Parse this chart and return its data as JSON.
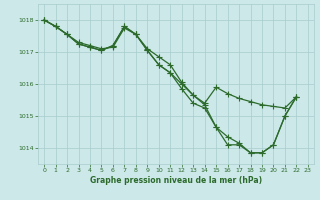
{
  "lines": [
    {
      "x": [
        0,
        1,
        2,
        3,
        4,
        5,
        6,
        7,
        8,
        9,
        10,
        11,
        12,
        13,
        14,
        15,
        16,
        17,
        18,
        19,
        20,
        21,
        22
      ],
      "y": [
        1018.0,
        1017.8,
        1017.55,
        1017.3,
        1017.2,
        1017.1,
        1017.15,
        1017.75,
        1017.55,
        1017.1,
        1016.85,
        1016.6,
        1016.05,
        1015.65,
        1015.4,
        1015.9,
        1015.7,
        1015.55,
        1015.45,
        1015.35,
        1015.3,
        1015.25,
        1015.6
      ]
    },
    {
      "x": [
        0,
        1,
        2,
        3,
        4,
        5,
        6,
        7,
        8,
        9,
        10,
        11,
        12,
        13,
        14,
        15,
        16,
        17,
        18,
        19,
        20,
        21,
        22
      ],
      "y": [
        1018.0,
        1017.8,
        1017.55,
        1017.25,
        1017.15,
        1017.05,
        1017.2,
        1017.8,
        1017.55,
        1017.05,
        1016.6,
        1016.35,
        1015.85,
        1015.4,
        1015.25,
        1014.65,
        1014.35,
        1014.15,
        1013.85,
        1013.85,
        1014.1,
        1015.0,
        1015.6
      ]
    },
    {
      "x": [
        0,
        1,
        2,
        3,
        4,
        5,
        6,
        7,
        8,
        9,
        10,
        11,
        12,
        13,
        14,
        15,
        16,
        17,
        18,
        19,
        20,
        21,
        22
      ],
      "y": [
        1018.0,
        1017.8,
        1017.55,
        1017.25,
        1017.15,
        1017.05,
        1017.2,
        1017.8,
        1017.55,
        1017.05,
        1016.6,
        1016.35,
        1016.0,
        1015.65,
        1015.35,
        1014.65,
        1014.1,
        1014.1,
        1013.85,
        1013.85,
        1014.1,
        1015.0,
        1015.6
      ]
    }
  ],
  "ylim": [
    1013.5,
    1018.5
  ],
  "yticks": [
    1014,
    1015,
    1016,
    1017,
    1018
  ],
  "xticks": [
    0,
    1,
    2,
    3,
    4,
    5,
    6,
    7,
    8,
    9,
    10,
    11,
    12,
    13,
    14,
    15,
    16,
    17,
    18,
    19,
    20,
    21,
    22,
    23
  ],
  "xlabel": "Graphe pression niveau de la mer (hPa)",
  "line_color": "#2d6b2d",
  "bg_color": "#cce8e8",
  "grid_color": "#a8cccc",
  "marker": "+",
  "marker_size": 4.0,
  "linewidth": 0.9
}
